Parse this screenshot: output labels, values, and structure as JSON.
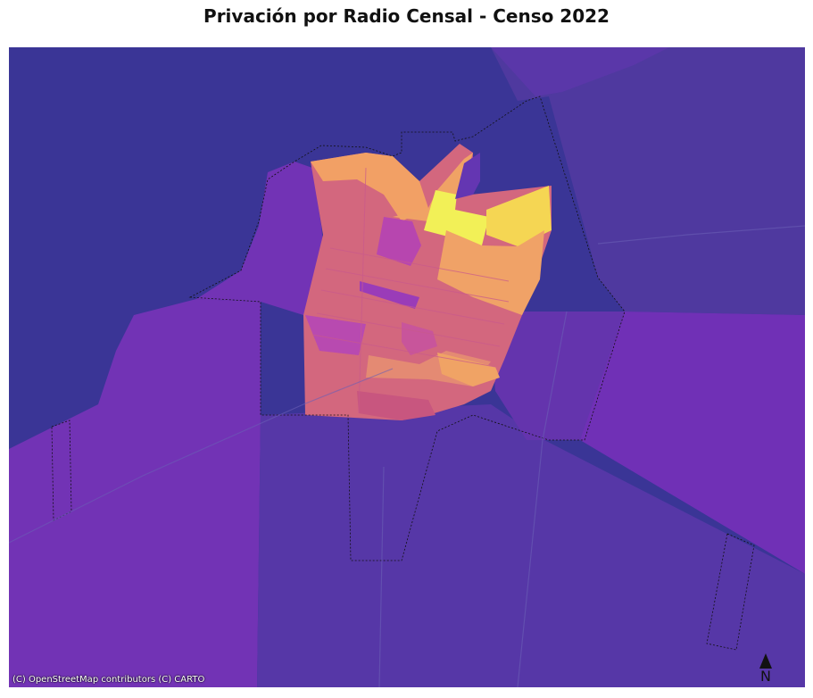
{
  "title": "Privación por Radio Censal - Censo 2022",
  "attribution": "(C) OpenStreetMap contributors (C) CARTO",
  "north_arrow": {
    "label": "N"
  },
  "colormap": "plasma",
  "colors": {
    "background": "#3a3596",
    "water": "#36369a",
    "low_purple": "#7231b8",
    "mid_purple": "#5d36a8",
    "pink": "#d2657f",
    "orange": "#f0a165",
    "yellow": "#f0ef55"
  }
}
